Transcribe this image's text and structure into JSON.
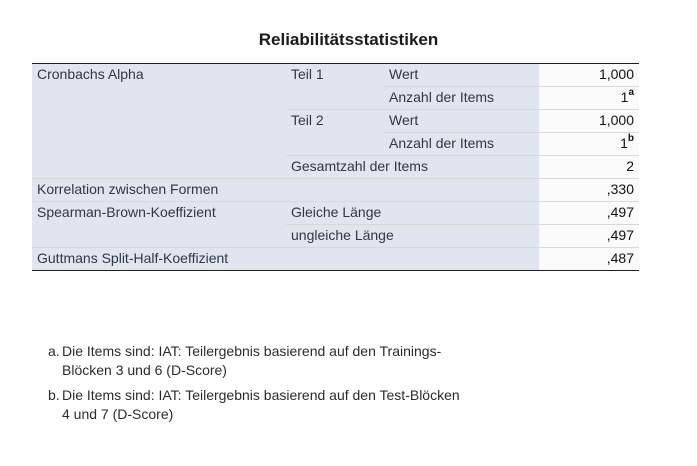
{
  "title": "Reliabilitätsstatistiken",
  "rows": {
    "cronbach": "Cronbachs Alpha",
    "teil1": "Teil 1",
    "teil2": "Teil 2",
    "wert": "Wert",
    "anzahl": "Anzahl der Items",
    "gesamt": "Gesamtzahl der Items",
    "korrelation": "Korrelation zwischen Formen",
    "spearman": "Spearman-Brown-Koeffizient",
    "gleich": "Gleiche Länge",
    "ungleich": "ungleiche Länge",
    "guttman": "Guttmans Split-Half-Koeffizient"
  },
  "values": {
    "teil1_wert": "1,000",
    "teil1_anzahl": "1",
    "teil1_anzahl_note": "a",
    "teil2_wert": "1,000",
    "teil2_anzahl": "1",
    "teil2_anzahl_note": "b",
    "gesamt": "2",
    "korrelation": ",330",
    "gleich": ",497",
    "ungleich": ",497",
    "guttman": ",487"
  },
  "footnotes": [
    {
      "marker": "a.",
      "line1": "Die Items sind: IAT: Teilergebnis basierend auf den Trainings-",
      "line2": "Blöcken 3 und 6 (D-Score)"
    },
    {
      "marker": "b.",
      "line1": "Die Items sind: IAT: Teilergebnis basierend auf den Test-Blöcken",
      "line2": "4 und 7 (D-Score)"
    }
  ]
}
